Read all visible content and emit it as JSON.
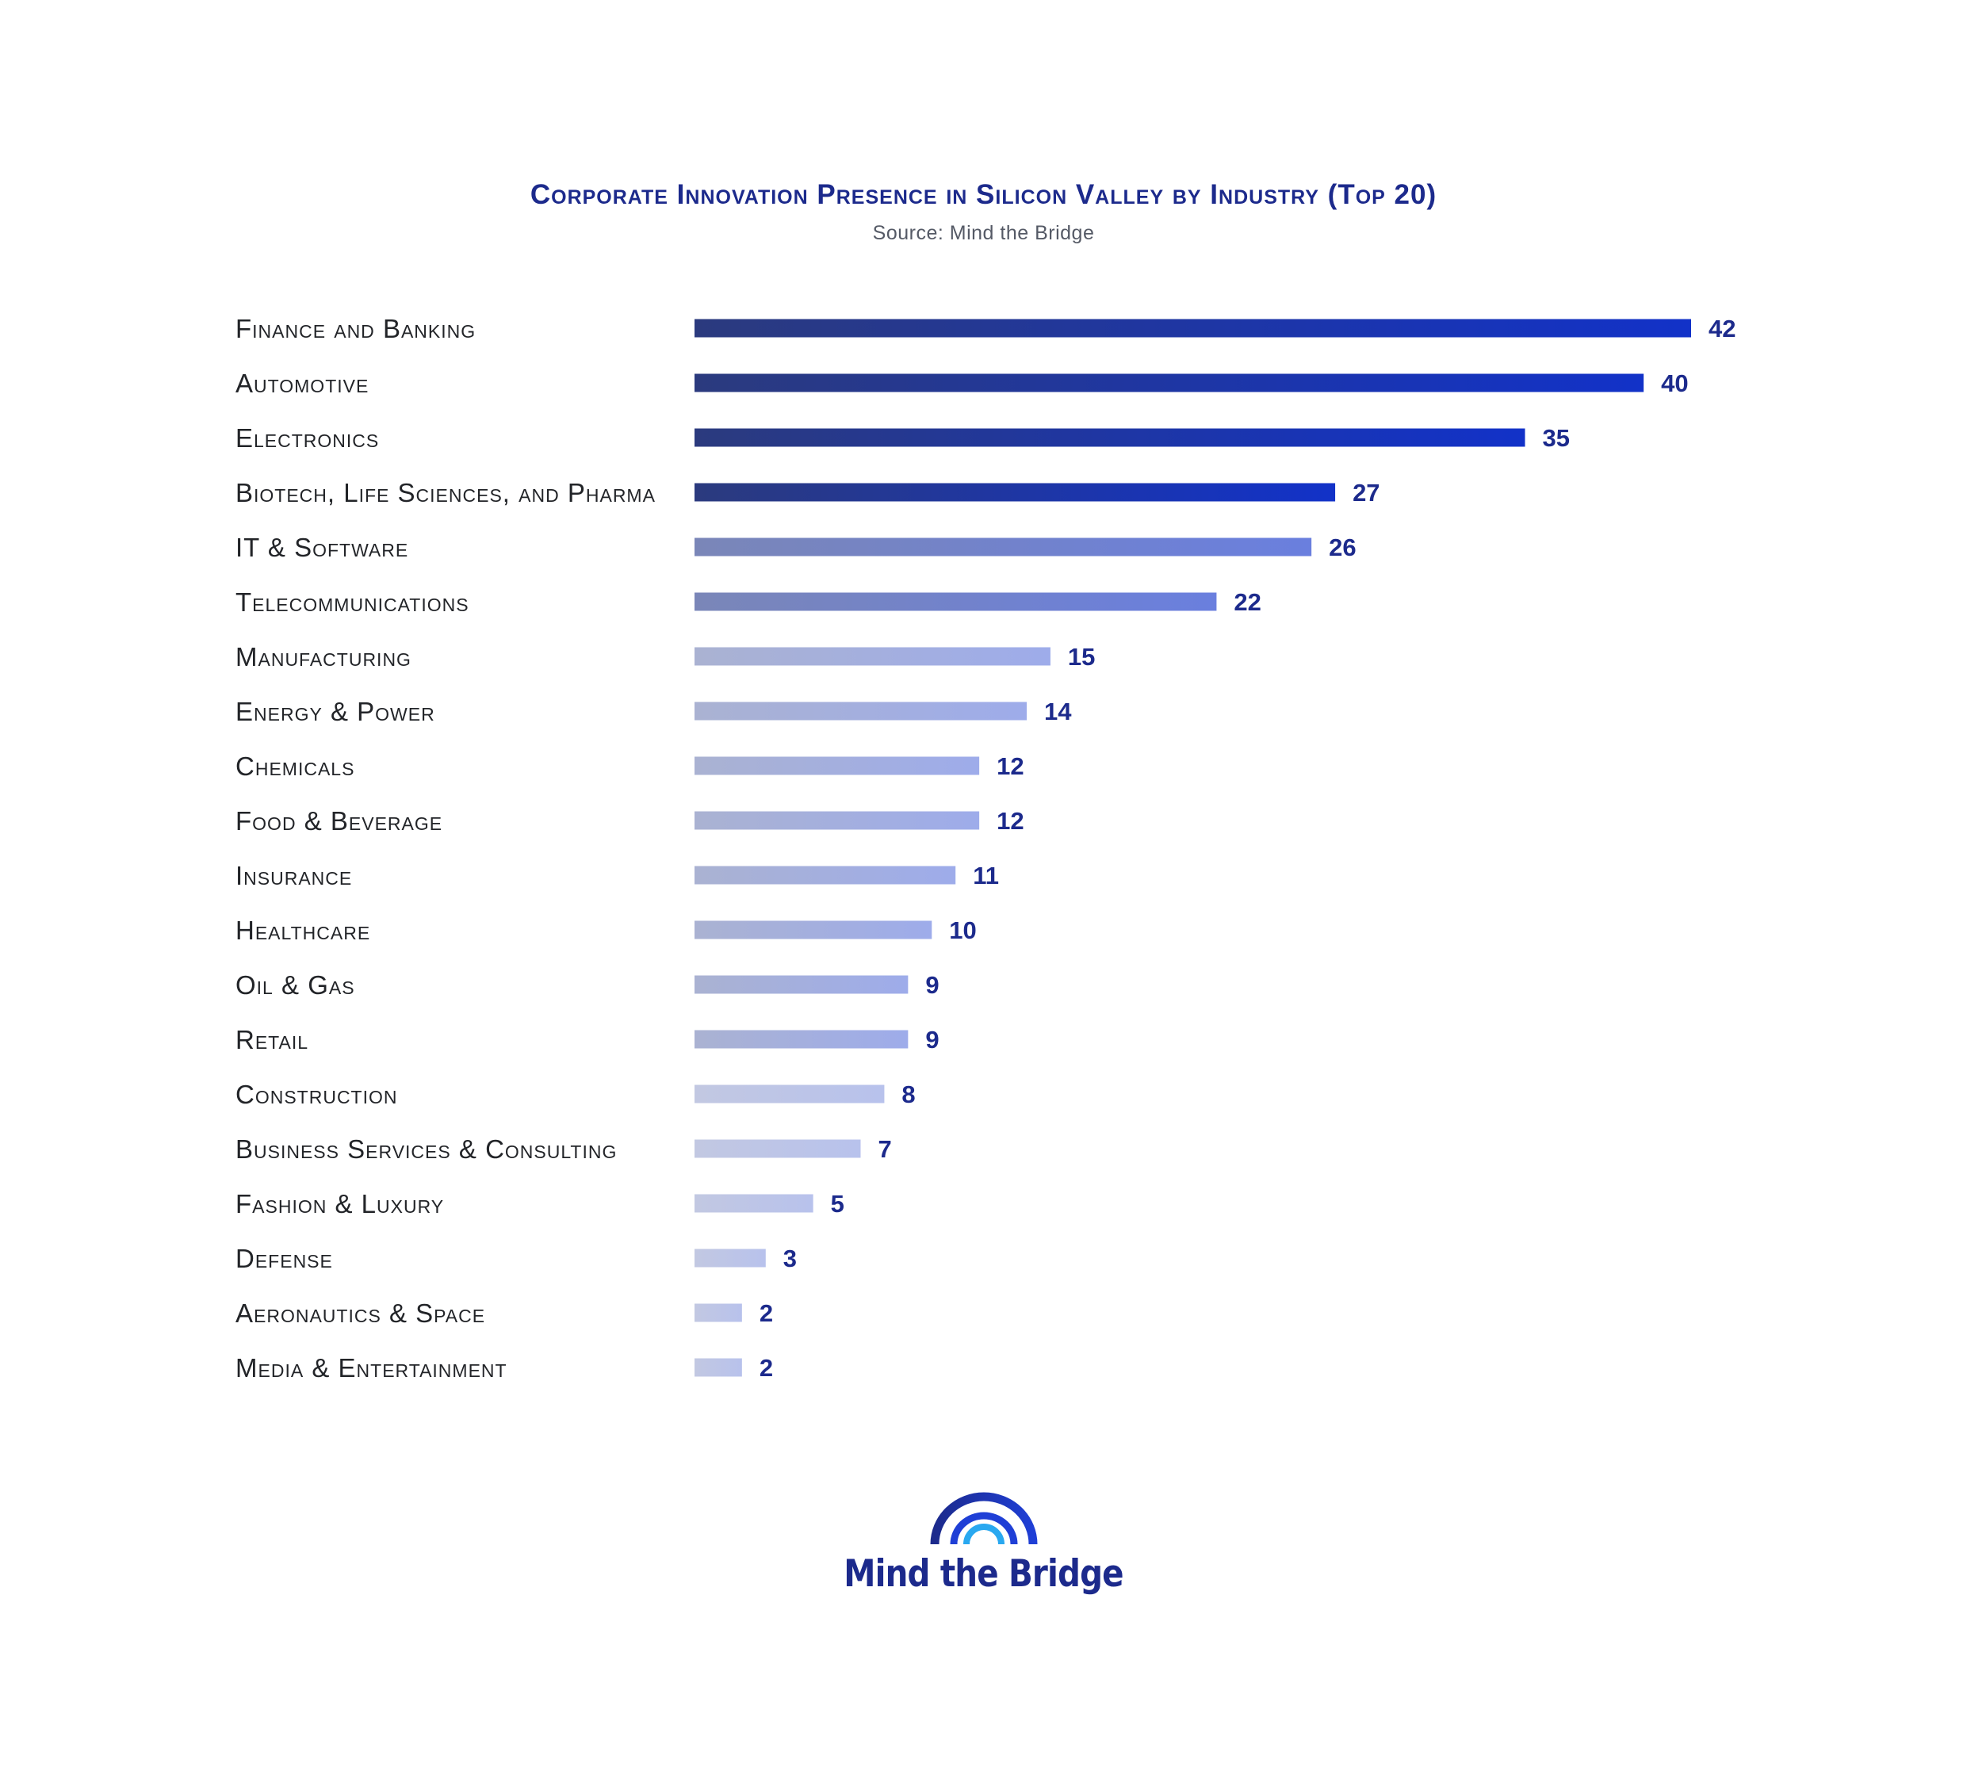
{
  "chart_data": {
    "type": "bar",
    "orientation": "horizontal",
    "title": "Corporate Innovation Presence in Silicon Valley by Industry (Top 20)",
    "subtitle": "Source: Mind the Bridge",
    "categories": [
      "Finance and Banking",
      "Automotive",
      "Electronics",
      "Biotech, Life Sciences, and Pharma",
      "IT & Software",
      "Telecommunications",
      "Manufacturing",
      "Energy & Power",
      "Chemicals",
      "Food & Beverage",
      "Insurance",
      "Healthcare",
      "Oil & Gas",
      "Retail",
      "Construction",
      "Business Services & Consulting",
      "Fashion & Luxury",
      "Defense",
      "Aeronautics & Space",
      "Media & Entertainment"
    ],
    "values": [
      42,
      40,
      35,
      27,
      26,
      22,
      15,
      14,
      12,
      12,
      11,
      10,
      9,
      9,
      8,
      7,
      5,
      3,
      2,
      2
    ],
    "xlim": [
      0,
      42
    ],
    "grid": false,
    "legend": "none",
    "data_labels": true
  },
  "colors": {
    "title": "#1c2a8c",
    "value_label": "#1c2a8c",
    "bar_tiers": [
      {
        "min": 27,
        "start": "#2b3a7e",
        "end": "#1232c8"
      },
      {
        "min": 22,
        "start": "#7a86b8",
        "end": "#6a7fde"
      },
      {
        "min": 9,
        "start": "#aab2d2",
        "end": "#9eacea"
      },
      {
        "min": 0,
        "start": "#c2c8e2",
        "end": "#b8c2ec"
      }
    ]
  },
  "logo": {
    "text": "Mind the Bridge",
    "icon": "bridge-arcs-icon"
  }
}
